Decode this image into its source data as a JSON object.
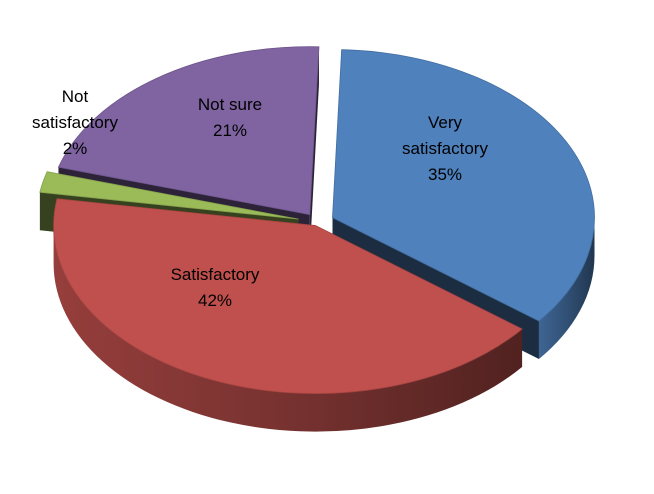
{
  "chart_data": {
    "type": "pie",
    "style": "3d-exploded",
    "title": "",
    "slices": [
      {
        "label": "Very satisfactory",
        "value": 35,
        "value_label": "35%",
        "color": "#4F81BD",
        "label_lines": [
          "Very",
          "satisfactory",
          "35%"
        ]
      },
      {
        "label": "Satisfactory",
        "value": 42,
        "value_label": "42%",
        "color": "#C0504D",
        "label_lines": [
          "Satisfactory",
          "42%"
        ]
      },
      {
        "label": "Not satisfactory",
        "value": 2,
        "value_label": "2%",
        "color": "#9BBB59",
        "label_lines": [
          "Not",
          "satisfactory",
          "2%"
        ]
      },
      {
        "label": "Not sure",
        "value": 21,
        "value_label": "21%",
        "color": "#8064A2",
        "label_lines": [
          "Not sure",
          "21%"
        ]
      }
    ]
  }
}
